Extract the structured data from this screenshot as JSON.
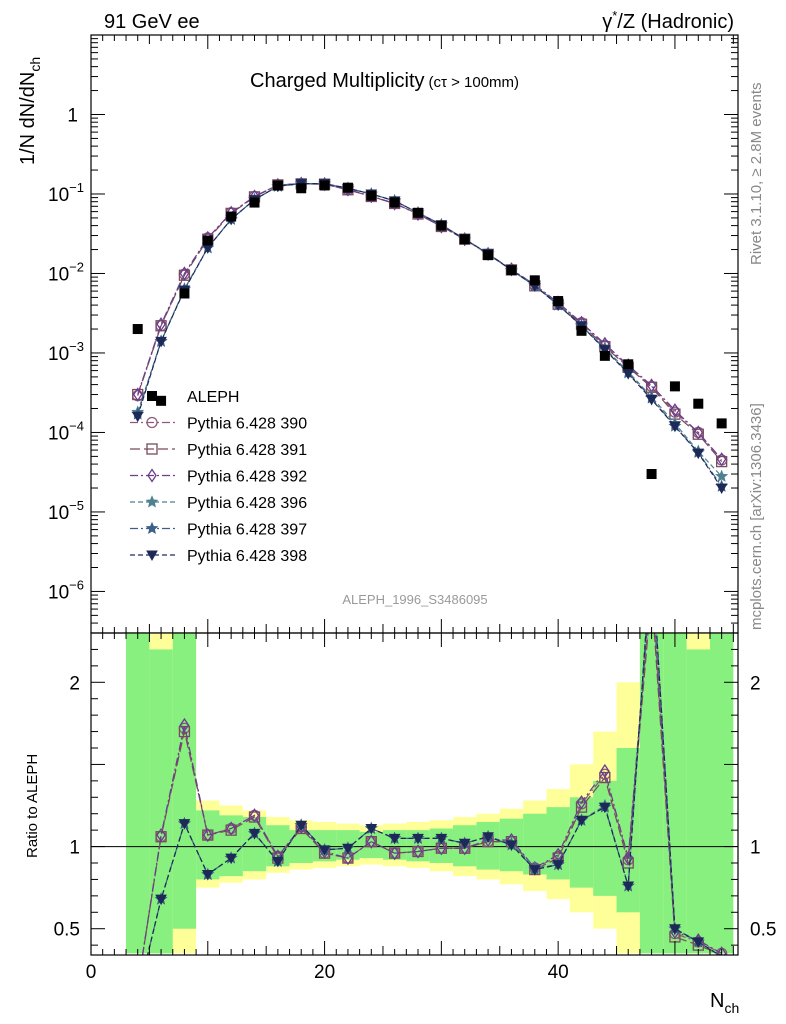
{
  "header": {
    "left": "91 GeV ee",
    "right_prefix": "γ",
    "right_sup": "*",
    "right_suffix": "/Z (Hadronic)"
  },
  "side_text": {
    "upper": "Rivet 3.1.10, ≥ 2.8M events",
    "lower": "mcplots.cern.ch [arXiv:1306.3436]"
  },
  "analysis_id": "ALEPH_1996_S3486095",
  "chart_data": {
    "type": "scatter",
    "title": "Charged Multiplicity",
    "title_small": "(cτ > 100mm)",
    "xlabel": "N",
    "xlabel_sub": "ch",
    "ylabel": "1/N dN/dN",
    "ylabel_sub": "ch",
    "ratio_ylabel": "Ratio to ALEPH",
    "xlim": [
      0,
      55.4
    ],
    "ylim": [
      3e-07,
      10
    ],
    "yscale": "log",
    "ratio_ylim": [
      0.34,
      2.3
    ],
    "x_ticks": [
      0,
      20,
      40
    ],
    "y_ticks": [
      {
        "v": 1,
        "base": "1",
        "exp": ""
      },
      {
        "v": 0.1,
        "base": "10",
        "exp": "−1"
      },
      {
        "v": 0.01,
        "base": "10",
        "exp": "−2"
      },
      {
        "v": 0.001,
        "base": "10",
        "exp": "−3"
      },
      {
        "v": 0.0001,
        "base": "10",
        "exp": "−4"
      },
      {
        "v": 1e-05,
        "base": "10",
        "exp": "−5"
      },
      {
        "v": 1e-06,
        "base": "10",
        "exp": "−6"
      }
    ],
    "ratio_ticks": [
      0.5,
      1,
      2
    ],
    "x": [
      4,
      6,
      8,
      10,
      12,
      14,
      16,
      18,
      20,
      22,
      24,
      26,
      28,
      30,
      32,
      34,
      36,
      38,
      40,
      42,
      44,
      46,
      48,
      50,
      52,
      54
    ],
    "data": {
      "name": "ALEPH",
      "values": [
        0.002,
        0.00025,
        0.0056,
        0.026,
        0.052,
        0.078,
        0.128,
        0.118,
        0.128,
        0.12,
        0.095,
        0.078,
        0.058,
        0.04,
        0.027,
        0.017,
        0.011,
        0.0082,
        0.0045,
        0.0019,
        0.00092,
        0.00072,
        3e-05,
        0.00038,
        0.00023,
        0.00013
      ],
      "band_inner": [
        [
          3,
          5,
          0.35,
          2.3
        ],
        [
          5,
          7,
          0.35,
          2.2
        ],
        [
          7,
          9,
          0.5,
          2.3
        ],
        [
          9,
          11,
          0.8,
          1.22
        ],
        [
          11,
          13,
          0.82,
          1.19
        ],
        [
          13,
          15,
          0.85,
          1.18
        ],
        [
          15,
          17,
          0.88,
          1.13
        ],
        [
          17,
          19,
          0.9,
          1.1
        ],
        [
          19,
          21,
          0.91,
          1.1
        ],
        [
          21,
          23,
          0.92,
          1.1
        ],
        [
          23,
          25,
          0.93,
          1.09
        ],
        [
          25,
          27,
          0.92,
          1.1
        ],
        [
          27,
          29,
          0.91,
          1.1
        ],
        [
          29,
          31,
          0.9,
          1.11
        ],
        [
          31,
          33,
          0.88,
          1.13
        ],
        [
          33,
          35,
          0.86,
          1.15
        ],
        [
          35,
          37,
          0.85,
          1.17
        ],
        [
          37,
          39,
          0.83,
          1.2
        ],
        [
          39,
          41,
          0.8,
          1.24
        ],
        [
          41,
          43,
          0.75,
          1.3
        ],
        [
          43,
          45,
          0.7,
          1.4
        ],
        [
          45,
          47,
          0.6,
          1.6
        ],
        [
          47,
          49,
          0.35,
          2.3
        ],
        [
          49,
          51,
          0.35,
          2.3
        ],
        [
          51,
          53,
          0.35,
          2.2
        ],
        [
          53,
          55,
          0.35,
          2.3
        ]
      ],
      "band_outer": [
        [
          3,
          5,
          0.35,
          2.3
        ],
        [
          5,
          7,
          0.35,
          2.3
        ],
        [
          7,
          9,
          0.35,
          2.3
        ],
        [
          9,
          11,
          0.75,
          1.28
        ],
        [
          11,
          13,
          0.78,
          1.25
        ],
        [
          13,
          15,
          0.8,
          1.22
        ],
        [
          15,
          17,
          0.84,
          1.18
        ],
        [
          17,
          19,
          0.86,
          1.16
        ],
        [
          19,
          21,
          0.87,
          1.15
        ],
        [
          21,
          23,
          0.88,
          1.14
        ],
        [
          23,
          25,
          0.89,
          1.13
        ],
        [
          25,
          27,
          0.88,
          1.14
        ],
        [
          27,
          29,
          0.87,
          1.15
        ],
        [
          29,
          31,
          0.85,
          1.16
        ],
        [
          31,
          33,
          0.82,
          1.18
        ],
        [
          33,
          35,
          0.8,
          1.2
        ],
        [
          35,
          37,
          0.77,
          1.23
        ],
        [
          37,
          39,
          0.73,
          1.28
        ],
        [
          39,
          41,
          0.68,
          1.35
        ],
        [
          41,
          43,
          0.6,
          1.5
        ],
        [
          43,
          45,
          0.5,
          1.7
        ],
        [
          45,
          47,
          0.35,
          2.0
        ],
        [
          47,
          49,
          0.35,
          2.3
        ],
        [
          49,
          51,
          0.35,
          2.3
        ],
        [
          51,
          53,
          0.35,
          2.3
        ],
        [
          53,
          55,
          0.35,
          2.3
        ]
      ]
    },
    "series": [
      {
        "name": "Pythia 6.428 390",
        "color": "#8e5a7b",
        "marker": "circle",
        "dash": "8,3,2,3",
        "values": [
          0.00029,
          0.0022,
          0.0098,
          0.028,
          0.058,
          0.093,
          0.13,
          0.135,
          0.133,
          0.113,
          0.093,
          0.076,
          0.056,
          0.039,
          0.027,
          0.0175,
          0.0112,
          0.0071,
          0.0042,
          0.0024,
          0.00125,
          0.00068,
          0.00038,
          0.00018,
          0.0001,
          4.5e-05
        ],
        "ratio": [
          0.145,
          1.06,
          1.72,
          1.07,
          1.11,
          1.19,
          0.94,
          1.12,
          0.96,
          0.93,
          1.03,
          0.96,
          0.97,
          0.99,
          0.99,
          1.03,
          1.03,
          0.87,
          0.94,
          1.26,
          1.44,
          0.92,
          2.6,
          0.47,
          0.42,
          0.35
        ]
      },
      {
        "name": "Pythia 6.428 391",
        "color": "#7a4b5e",
        "marker": "square",
        "dash": "10,4",
        "values": [
          0.0003,
          0.0022,
          0.0095,
          0.027,
          0.057,
          0.092,
          0.13,
          0.134,
          0.133,
          0.113,
          0.093,
          0.076,
          0.056,
          0.039,
          0.027,
          0.0174,
          0.0111,
          0.007,
          0.0041,
          0.0023,
          0.0012,
          0.00066,
          0.00037,
          0.00017,
          9.5e-05,
          4.3e-05
        ],
        "ratio": [
          0.15,
          1.06,
          1.7,
          1.07,
          1.1,
          1.18,
          0.93,
          1.11,
          0.96,
          0.93,
          1.03,
          0.96,
          0.97,
          0.99,
          0.99,
          1.03,
          1.03,
          0.86,
          0.93,
          1.24,
          1.42,
          0.9,
          2.55,
          0.45,
          0.4,
          0.34
        ]
      },
      {
        "name": "Pythia 6.428 392",
        "color": "#6a3d8f",
        "marker": "diamond",
        "dash": "8,3,2,3",
        "values": [
          0.0003,
          0.0023,
          0.01,
          0.028,
          0.058,
          0.093,
          0.13,
          0.135,
          0.133,
          0.114,
          0.094,
          0.076,
          0.056,
          0.039,
          0.027,
          0.0176,
          0.0113,
          0.0072,
          0.0043,
          0.0024,
          0.0013,
          0.0007,
          0.00039,
          0.00019,
          0.0001,
          4.6e-05
        ],
        "ratio": [
          0.15,
          1.07,
          1.74,
          1.07,
          1.11,
          1.19,
          0.94,
          1.12,
          0.97,
          0.93,
          1.03,
          0.96,
          0.97,
          0.99,
          0.99,
          1.04,
          1.04,
          0.87,
          0.95,
          1.27,
          1.46,
          0.93,
          2.65,
          0.48,
          0.43,
          0.35
        ]
      },
      {
        "name": "Pythia 6.428 396",
        "color": "#4f8290",
        "marker": "star",
        "dash": "5,3",
        "values": [
          0.00018,
          0.0014,
          0.0064,
          0.021,
          0.048,
          0.085,
          0.125,
          0.135,
          0.135,
          0.118,
          0.1,
          0.082,
          0.058,
          0.041,
          0.027,
          0.0178,
          0.011,
          0.0071,
          0.0041,
          0.0022,
          0.00115,
          0.00058,
          0.00028,
          0.00013,
          5.8e-05,
          2.8e-05
        ],
        "ratio": [
          0.09,
          0.68,
          1.14,
          0.83,
          0.93,
          1.08,
          0.91,
          1.13,
          0.98,
          0.99,
          1.11,
          1.05,
          1.05,
          1.05,
          1.02,
          1.06,
          1.02,
          0.87,
          0.89,
          1.16,
          1.25,
          0.76,
          2.8,
          0.5,
          0.42,
          0.33
        ]
      },
      {
        "name": "Pythia 6.428 397",
        "color": "#3e5f8a",
        "marker": "star",
        "dash": "8,3,2,3",
        "values": [
          0.00017,
          0.0014,
          0.0063,
          0.021,
          0.048,
          0.085,
          0.125,
          0.135,
          0.135,
          0.118,
          0.1,
          0.082,
          0.058,
          0.041,
          0.027,
          0.0178,
          0.011,
          0.007,
          0.004,
          0.0022,
          0.00112,
          0.00056,
          0.00027,
          0.00012,
          5.6e-05,
          2.1e-05
        ],
        "ratio": [
          0.09,
          0.68,
          1.14,
          0.83,
          0.93,
          1.08,
          0.91,
          1.13,
          0.98,
          0.99,
          1.11,
          1.05,
          1.05,
          1.05,
          1.02,
          1.06,
          1.01,
          0.86,
          0.89,
          1.16,
          1.24,
          0.76,
          2.8,
          0.5,
          0.42,
          0.33
        ]
      },
      {
        "name": "Pythia 6.428 398",
        "color": "#1d2a57",
        "marker": "triangle",
        "dash": "5,3",
        "values": [
          0.00016,
          0.0014,
          0.0062,
          0.021,
          0.048,
          0.085,
          0.125,
          0.135,
          0.135,
          0.118,
          0.1,
          0.082,
          0.058,
          0.041,
          0.027,
          0.0178,
          0.011,
          0.007,
          0.004,
          0.0022,
          0.0011,
          0.00055,
          0.00026,
          0.00012,
          5.5e-05,
          2e-05
        ],
        "ratio": [
          0.09,
          0.68,
          1.14,
          0.83,
          0.93,
          1.08,
          0.91,
          1.13,
          0.98,
          0.99,
          1.11,
          1.05,
          1.05,
          1.05,
          1.02,
          1.06,
          1.01,
          0.86,
          0.89,
          1.16,
          1.24,
          0.76,
          2.8,
          0.5,
          0.42,
          0.33
        ]
      }
    ]
  }
}
